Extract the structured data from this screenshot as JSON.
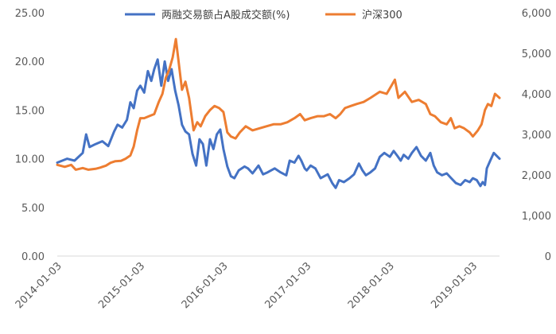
{
  "chart_data": {
    "type": "line",
    "legend_position": "top",
    "grid": false,
    "x_ticks": [
      "2014-01-03",
      "2015-01-03",
      "2016-01-03",
      "2017-01-03",
      "2018-01-03",
      "2019-01-03"
    ],
    "x_range": [
      "2014-01-03",
      "2019-04-30"
    ],
    "y_left": {
      "range": [
        0,
        25
      ],
      "ticks": [
        "0.00",
        "5.00",
        "10.00",
        "15.00",
        "20.00",
        "25.00"
      ]
    },
    "y_right": {
      "range": [
        0,
        6000
      ],
      "ticks": [
        "0",
        "1,000",
        "2,000",
        "3,000",
        "4,000",
        "5,000",
        "6,000"
      ]
    },
    "series": [
      {
        "name": "两融交易额占A股成交额(%)",
        "axis": "left",
        "color": "#4472C4",
        "points": [
          [
            "2014-01-03",
            9.6
          ],
          [
            "2014-02-15",
            10.0
          ],
          [
            "2014-03-20",
            9.8
          ],
          [
            "2014-04-25",
            10.6
          ],
          [
            "2014-05-10",
            12.5
          ],
          [
            "2014-05-25",
            11.2
          ],
          [
            "2014-06-20",
            11.5
          ],
          [
            "2014-07-20",
            11.8
          ],
          [
            "2014-08-15",
            11.3
          ],
          [
            "2014-09-10",
            12.8
          ],
          [
            "2014-09-25",
            13.5
          ],
          [
            "2014-10-15",
            13.2
          ],
          [
            "2014-11-05",
            14.0
          ],
          [
            "2014-11-20",
            15.8
          ],
          [
            "2014-12-05",
            15.2
          ],
          [
            "2014-12-20",
            17.0
          ],
          [
            "2015-01-03",
            17.5
          ],
          [
            "2015-01-20",
            16.8
          ],
          [
            "2015-02-05",
            19.0
          ],
          [
            "2015-02-20",
            18.0
          ],
          [
            "2015-03-05",
            19.2
          ],
          [
            "2015-03-20",
            20.2
          ],
          [
            "2015-04-05",
            17.5
          ],
          [
            "2015-04-20",
            20.0
          ],
          [
            "2015-05-05",
            18.0
          ],
          [
            "2015-05-20",
            19.2
          ],
          [
            "2015-06-05",
            17.0
          ],
          [
            "2015-06-20",
            15.5
          ],
          [
            "2015-07-05",
            13.5
          ],
          [
            "2015-07-20",
            12.8
          ],
          [
            "2015-08-05",
            12.5
          ],
          [
            "2015-08-20",
            10.5
          ],
          [
            "2015-09-05",
            9.3
          ],
          [
            "2015-09-20",
            12.0
          ],
          [
            "2015-10-05",
            11.5
          ],
          [
            "2015-10-20",
            9.3
          ],
          [
            "2015-11-05",
            12.0
          ],
          [
            "2015-11-20",
            11.0
          ],
          [
            "2015-12-05",
            12.5
          ],
          [
            "2015-12-20",
            13.0
          ],
          [
            "2016-01-03",
            11.0
          ],
          [
            "2016-01-20",
            9.2
          ],
          [
            "2016-02-05",
            8.2
          ],
          [
            "2016-02-20",
            8.0
          ],
          [
            "2016-03-10",
            8.8
          ],
          [
            "2016-04-05",
            9.2
          ],
          [
            "2016-04-20",
            9.0
          ],
          [
            "2016-05-10",
            8.5
          ],
          [
            "2016-06-05",
            9.3
          ],
          [
            "2016-06-25",
            8.4
          ],
          [
            "2016-07-15",
            8.6
          ],
          [
            "2016-08-15",
            9.0
          ],
          [
            "2016-09-10",
            8.6
          ],
          [
            "2016-10-05",
            8.3
          ],
          [
            "2016-10-20",
            9.8
          ],
          [
            "2016-11-10",
            9.6
          ],
          [
            "2016-11-28",
            10.3
          ],
          [
            "2016-12-10",
            9.8
          ],
          [
            "2016-12-25",
            9.0
          ],
          [
            "2017-01-03",
            8.8
          ],
          [
            "2017-01-20",
            9.3
          ],
          [
            "2017-02-10",
            9.0
          ],
          [
            "2017-03-05",
            8.0
          ],
          [
            "2017-04-05",
            8.4
          ],
          [
            "2017-04-25",
            7.5
          ],
          [
            "2017-05-10",
            7.0
          ],
          [
            "2017-05-25",
            7.8
          ],
          [
            "2017-06-15",
            7.6
          ],
          [
            "2017-07-10",
            8.0
          ],
          [
            "2017-07-30",
            8.4
          ],
          [
            "2017-08-20",
            9.5
          ],
          [
            "2017-09-05",
            8.8
          ],
          [
            "2017-09-20",
            8.3
          ],
          [
            "2017-10-10",
            8.6
          ],
          [
            "2017-10-30",
            9.0
          ],
          [
            "2017-11-20",
            10.2
          ],
          [
            "2017-12-10",
            10.6
          ],
          [
            "2018-01-03",
            10.2
          ],
          [
            "2018-01-20",
            10.8
          ],
          [
            "2018-02-05",
            10.3
          ],
          [
            "2018-02-20",
            9.8
          ],
          [
            "2018-03-05",
            10.4
          ],
          [
            "2018-03-25",
            10.0
          ],
          [
            "2018-04-10",
            10.6
          ],
          [
            "2018-04-30",
            11.2
          ],
          [
            "2018-05-20",
            10.3
          ],
          [
            "2018-06-10",
            9.8
          ],
          [
            "2018-06-30",
            10.6
          ],
          [
            "2018-07-15",
            9.3
          ],
          [
            "2018-07-30",
            8.6
          ],
          [
            "2018-08-20",
            8.3
          ],
          [
            "2018-09-10",
            8.5
          ],
          [
            "2018-09-30",
            8.0
          ],
          [
            "2018-10-20",
            7.5
          ],
          [
            "2018-11-10",
            7.3
          ],
          [
            "2018-11-30",
            7.8
          ],
          [
            "2018-12-20",
            7.6
          ],
          [
            "2019-01-03",
            8.0
          ],
          [
            "2019-01-20",
            7.8
          ],
          [
            "2019-02-05",
            7.2
          ],
          [
            "2019-02-15",
            7.6
          ],
          [
            "2019-02-25",
            7.3
          ],
          [
            "2019-03-05",
            9.0
          ],
          [
            "2019-03-20",
            9.8
          ],
          [
            "2019-04-05",
            10.6
          ],
          [
            "2019-04-30",
            10.0
          ]
        ]
      },
      {
        "name": "沪深300",
        "axis": "right",
        "color": "#ED7D31",
        "points": [
          [
            "2014-01-03",
            2250
          ],
          [
            "2014-02-05",
            2200
          ],
          [
            "2014-03-05",
            2250
          ],
          [
            "2014-03-25",
            2130
          ],
          [
            "2014-04-25",
            2170
          ],
          [
            "2014-05-20",
            2130
          ],
          [
            "2014-06-20",
            2150
          ],
          [
            "2014-07-10",
            2180
          ],
          [
            "2014-08-05",
            2230
          ],
          [
            "2014-08-25",
            2300
          ],
          [
            "2014-09-15",
            2340
          ],
          [
            "2014-10-10",
            2350
          ],
          [
            "2014-10-30",
            2400
          ],
          [
            "2014-11-20",
            2480
          ],
          [
            "2014-12-05",
            2700
          ],
          [
            "2014-12-20",
            3100
          ],
          [
            "2015-01-03",
            3400
          ],
          [
            "2015-01-20",
            3400
          ],
          [
            "2015-02-10",
            3450
          ],
          [
            "2015-03-05",
            3500
          ],
          [
            "2015-03-25",
            3800
          ],
          [
            "2015-04-10",
            4000
          ],
          [
            "2015-04-25",
            4400
          ],
          [
            "2015-05-10",
            4600
          ],
          [
            "2015-05-25",
            4900
          ],
          [
            "2015-06-08",
            5350
          ],
          [
            "2015-06-20",
            4800
          ],
          [
            "2015-07-05",
            4100
          ],
          [
            "2015-07-20",
            4300
          ],
          [
            "2015-08-05",
            3900
          ],
          [
            "2015-08-25",
            3100
          ],
          [
            "2015-09-10",
            3300
          ],
          [
            "2015-09-25",
            3200
          ],
          [
            "2015-10-15",
            3450
          ],
          [
            "2015-11-05",
            3600
          ],
          [
            "2015-11-25",
            3700
          ],
          [
            "2015-12-15",
            3650
          ],
          [
            "2016-01-03",
            3550
          ],
          [
            "2016-01-20",
            3050
          ],
          [
            "2016-02-05",
            2950
          ],
          [
            "2016-02-25",
            2900
          ],
          [
            "2016-03-15",
            3050
          ],
          [
            "2016-04-10",
            3200
          ],
          [
            "2016-05-10",
            3100
          ],
          [
            "2016-06-10",
            3150
          ],
          [
            "2016-07-10",
            3200
          ],
          [
            "2016-08-10",
            3250
          ],
          [
            "2016-09-10",
            3250
          ],
          [
            "2016-10-10",
            3300
          ],
          [
            "2016-11-10",
            3400
          ],
          [
            "2016-12-05",
            3500
          ],
          [
            "2016-12-25",
            3350
          ],
          [
            "2017-01-20",
            3400
          ],
          [
            "2017-02-20",
            3450
          ],
          [
            "2017-03-20",
            3450
          ],
          [
            "2017-04-15",
            3500
          ],
          [
            "2017-05-10",
            3400
          ],
          [
            "2017-05-30",
            3500
          ],
          [
            "2017-06-20",
            3650
          ],
          [
            "2017-07-15",
            3700
          ],
          [
            "2017-08-10",
            3750
          ],
          [
            "2017-09-10",
            3800
          ],
          [
            "2017-10-10",
            3900
          ],
          [
            "2017-11-20",
            4050
          ],
          [
            "2017-12-20",
            4000
          ],
          [
            "2018-01-10",
            4200
          ],
          [
            "2018-01-25",
            4350
          ],
          [
            "2018-02-10",
            3900
          ],
          [
            "2018-03-10",
            4050
          ],
          [
            "2018-04-10",
            3800
          ],
          [
            "2018-05-10",
            3850
          ],
          [
            "2018-06-10",
            3750
          ],
          [
            "2018-06-30",
            3500
          ],
          [
            "2018-07-20",
            3450
          ],
          [
            "2018-08-15",
            3300
          ],
          [
            "2018-09-10",
            3250
          ],
          [
            "2018-09-28",
            3400
          ],
          [
            "2018-10-15",
            3150
          ],
          [
            "2018-11-05",
            3200
          ],
          [
            "2018-11-25",
            3150
          ],
          [
            "2018-12-20",
            3050
          ],
          [
            "2019-01-03",
            2950
          ],
          [
            "2019-01-25",
            3100
          ],
          [
            "2019-02-10",
            3250
          ],
          [
            "2019-02-25",
            3600
          ],
          [
            "2019-03-10",
            3750
          ],
          [
            "2019-03-25",
            3700
          ],
          [
            "2019-04-10",
            4000
          ],
          [
            "2019-04-30",
            3900
          ]
        ]
      }
    ]
  }
}
